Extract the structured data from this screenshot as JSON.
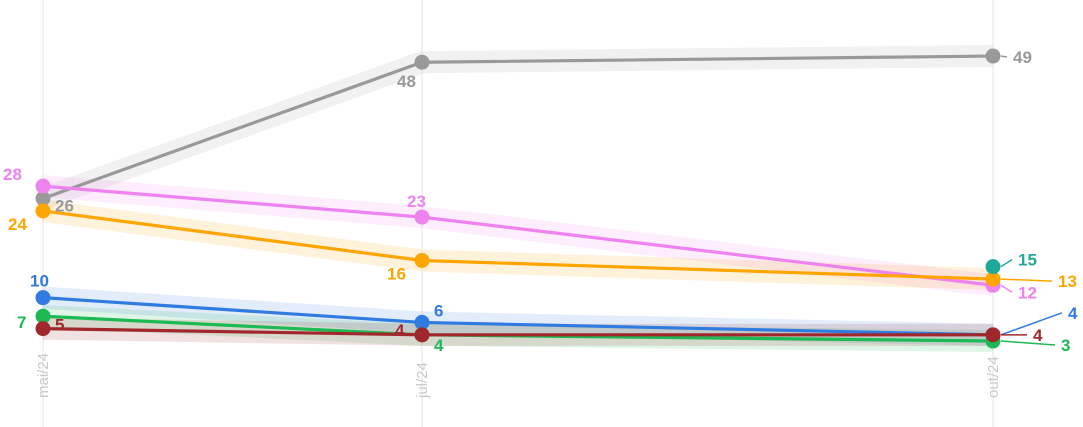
{
  "chart_data": {
    "type": "line",
    "categories": [
      "mai/24",
      "jul/24",
      "out/24"
    ],
    "grid": "vertical lines at each category",
    "legend": "none",
    "series": [
      {
        "color": "#999999",
        "values": [
          26,
          48,
          49
        ],
        "labels": [
          "26",
          "48",
          "49"
        ]
      },
      {
        "color": "#EE82EE",
        "values": [
          28,
          23,
          12
        ],
        "labels": [
          "28",
          "23",
          "12"
        ]
      },
      {
        "color": "#FFA500",
        "values": [
          24,
          16,
          13
        ],
        "labels": [
          "24",
          "16",
          "13"
        ]
      },
      {
        "color": "#1FA99A",
        "values": [
          null,
          null,
          15
        ],
        "labels": [
          "",
          "",
          "15"
        ]
      },
      {
        "color": "#2F7BE0",
        "values": [
          10,
          6,
          4
        ],
        "labels": [
          "10",
          "6",
          "4"
        ]
      },
      {
        "color": "#1DB954",
        "values": [
          7,
          4,
          3
        ],
        "labels": [
          "7",
          "4",
          "3"
        ]
      },
      {
        "color": "#A0282C",
        "values": [
          5,
          4,
          4
        ],
        "labels": [
          "5",
          "4",
          "4"
        ]
      }
    ]
  }
}
